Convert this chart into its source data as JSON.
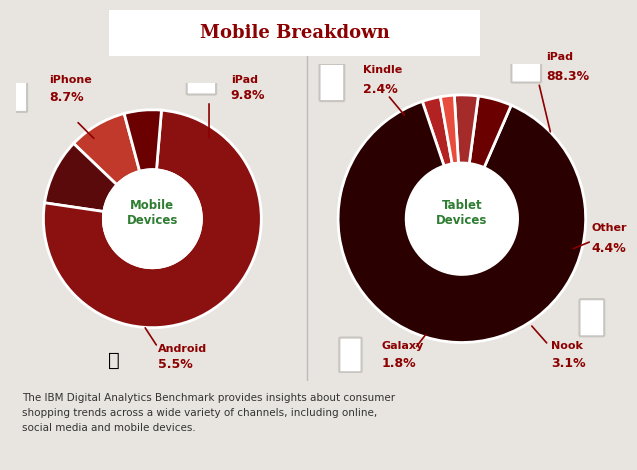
{
  "title": "Mobile Breakdown",
  "bg_color": "#e8e5e0",
  "mobile": {
    "values": [
      8.7,
      9.8,
      76.0,
      5.5
    ],
    "colors": [
      "#c0392b",
      "#5a0a0a",
      "#8b1010",
      "#6b0000"
    ],
    "center_label": "Mobile\nDevices",
    "center_color": "#2e7d32",
    "labels": [
      "iPhone\n8.7%",
      "iPad\n9.8%",
      "",
      "Android\n5.5%"
    ],
    "startangle": 90
  },
  "tablet": {
    "values": [
      2.4,
      88.3,
      4.4,
      3.1,
      1.8
    ],
    "colors": [
      "#b22222",
      "#2a0000",
      "#6b0000",
      "#a52a2a",
      "#e74c3c"
    ],
    "center_label": "Tablet\nDevices",
    "center_color": "#2e7d32",
    "labels": [
      "Kindle\n2.4%",
      "iPad\n88.3%",
      "Other\n4.4%",
      "Nook\n3.1%",
      "Galaxy\n1.8%"
    ],
    "startangle": 72
  },
  "footer": "The IBM Digital Analytics Benchmark provides insights about consumer\nshopping trends across a wide variety of channels, including online,\nsocial media and mobile devices.",
  "title_text_color": "#8b0000",
  "label_color": "#8b0000",
  "icon_color": "#c8c4c0",
  "line_color": "#8b0000"
}
